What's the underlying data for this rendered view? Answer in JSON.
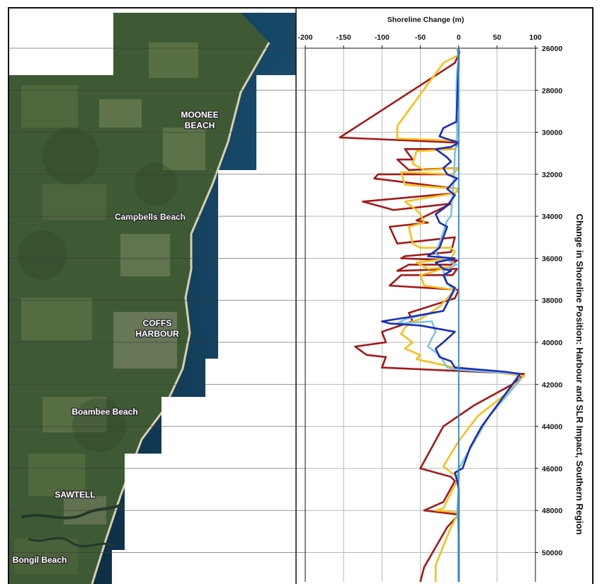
{
  "places": [
    {
      "id": "moonee",
      "lines": [
        "MOONEE",
        "BEACH"
      ]
    },
    {
      "id": "campbells",
      "lines": [
        "Campbells Beach"
      ]
    },
    {
      "id": "coffs",
      "lines": [
        "COFFS",
        "HARBOUR"
      ]
    },
    {
      "id": "boambee",
      "lines": [
        "Boambee Beach"
      ]
    },
    {
      "id": "sawtell",
      "lines": [
        "SAWTELL"
      ]
    },
    {
      "id": "bongil",
      "lines": [
        "Bongil Beach"
      ]
    }
  ],
  "chart_data": {
    "type": "line",
    "title": "Shoreline Change (m)",
    "ylabel": "Change in Shoreline Position: Harbour and SLR Impact, Southern Region",
    "xlim": [
      -200,
      100
    ],
    "ylim": [
      26000,
      51400
    ],
    "x_ticks": [
      -200,
      -150,
      -100,
      -50,
      0,
      50,
      100
    ],
    "y_ticks": [
      26000,
      28000,
      30000,
      32000,
      34000,
      36000,
      38000,
      40000,
      42000,
      44000,
      46000,
      48000,
      50000
    ],
    "grid": true,
    "legend": "none",
    "series": [
      {
        "color": "#a31a1a",
        "points": [
          [
            -2,
            26000
          ],
          [
            1,
            26200
          ],
          [
            -5,
            26700
          ],
          [
            -155,
            30250
          ],
          [
            0,
            30500
          ],
          [
            -5,
            30800
          ],
          [
            -70,
            30800
          ],
          [
            -60,
            31300
          ],
          [
            -80,
            31300
          ],
          [
            -65,
            31800
          ],
          [
            0,
            31700
          ],
          [
            -8,
            32000
          ],
          [
            -105,
            32000
          ],
          [
            -110,
            32200
          ],
          [
            0,
            32700
          ],
          [
            -5,
            32900
          ],
          [
            -125,
            33300
          ],
          [
            -85,
            33700
          ],
          [
            -10,
            33400
          ],
          [
            -55,
            34200
          ],
          [
            -40,
            34300
          ],
          [
            -90,
            34500
          ],
          [
            -80,
            35300
          ],
          [
            -5,
            35000
          ],
          [
            -10,
            35700
          ],
          [
            -70,
            35900
          ],
          [
            -75,
            36000
          ],
          [
            -2,
            36100
          ],
          [
            -10,
            36300
          ],
          [
            -65,
            36300
          ],
          [
            -80,
            36600
          ],
          [
            -2,
            36500
          ],
          [
            -8,
            36800
          ],
          [
            -75,
            36800
          ],
          [
            -90,
            37300
          ],
          [
            0,
            37500
          ],
          [
            -5,
            37900
          ],
          [
            -65,
            38600
          ],
          [
            -60,
            39000
          ],
          [
            -100,
            39500
          ],
          [
            -95,
            40000
          ],
          [
            -135,
            40200
          ],
          [
            -120,
            40600
          ],
          [
            -95,
            40700
          ],
          [
            -100,
            41200
          ],
          [
            85,
            41500
          ],
          [
            70,
            42000
          ],
          [
            20,
            43000
          ],
          [
            -20,
            44000
          ],
          [
            -50,
            46000
          ],
          [
            -10,
            46400
          ],
          [
            -5,
            46600
          ],
          [
            -20,
            47600
          ],
          [
            -45,
            48000
          ],
          [
            0,
            48200
          ],
          [
            -15,
            48800
          ],
          [
            -45,
            50700
          ],
          [
            -50,
            51400
          ]
        ]
      },
      {
        "color": "#f5c11c",
        "points": [
          [
            -3,
            26000
          ],
          [
            1,
            26300
          ],
          [
            -20,
            26700
          ],
          [
            -80,
            29700
          ],
          [
            -80,
            30300
          ],
          [
            0,
            30400
          ],
          [
            -5,
            30800
          ],
          [
            -55,
            30900
          ],
          [
            -60,
            31500
          ],
          [
            -45,
            31800
          ],
          [
            0,
            31700
          ],
          [
            -8,
            32000
          ],
          [
            -75,
            31900
          ],
          [
            -70,
            32500
          ],
          [
            0,
            32700
          ],
          [
            -5,
            32900
          ],
          [
            -70,
            33300
          ],
          [
            -55,
            33700
          ],
          [
            -50,
            33900
          ],
          [
            -45,
            34300
          ],
          [
            -65,
            34500
          ],
          [
            -60,
            35300
          ],
          [
            -50,
            35500
          ],
          [
            -10,
            35500
          ],
          [
            -5,
            35700
          ],
          [
            -10,
            36000
          ],
          [
            -55,
            36200
          ],
          [
            -40,
            36500
          ],
          [
            -10,
            36400
          ],
          [
            -50,
            36800
          ],
          [
            -45,
            37300
          ],
          [
            -5,
            37500
          ],
          [
            -25,
            38300
          ],
          [
            -50,
            38900
          ],
          [
            -60,
            39000
          ],
          [
            -70,
            39300
          ],
          [
            -75,
            39600
          ],
          [
            -60,
            40000
          ],
          [
            -70,
            40300
          ],
          [
            -50,
            40600
          ],
          [
            -55,
            40800
          ],
          [
            -30,
            41000
          ],
          [
            -5,
            41200
          ],
          [
            85,
            41600
          ],
          [
            60,
            42500
          ],
          [
            25,
            43500
          ],
          [
            0,
            44700
          ],
          [
            -20,
            45900
          ],
          [
            -10,
            46200
          ],
          [
            0,
            46400
          ],
          [
            -5,
            46800
          ],
          [
            -20,
            47900
          ],
          [
            -30,
            48000
          ],
          [
            0,
            48100
          ],
          [
            -10,
            48800
          ],
          [
            -30,
            50600
          ],
          [
            -30,
            51400
          ]
        ]
      },
      {
        "color": "#7fc3e0",
        "points": [
          [
            -2,
            26000
          ],
          [
            0,
            26500
          ],
          [
            -2,
            27000
          ],
          [
            -3,
            28000
          ],
          [
            -2,
            30000
          ],
          [
            -3,
            30500
          ],
          [
            -5,
            31000
          ],
          [
            -6,
            32000
          ],
          [
            -8,
            33000
          ],
          [
            -10,
            34000
          ],
          [
            -15,
            34200
          ],
          [
            -30,
            35800
          ],
          [
            -20,
            36000
          ],
          [
            -3,
            36300
          ],
          [
            -20,
            36600
          ],
          [
            -15,
            37200
          ],
          [
            -5,
            37500
          ],
          [
            -20,
            38500
          ],
          [
            -70,
            38900
          ],
          [
            -80,
            39100
          ],
          [
            -35,
            39000
          ],
          [
            -30,
            39500
          ],
          [
            -35,
            39800
          ],
          [
            -40,
            40200
          ],
          [
            -25,
            40600
          ],
          [
            -15,
            41200
          ],
          [
            0,
            41300
          ],
          [
            75,
            41500
          ],
          [
            80,
            41800
          ],
          [
            40,
            43500
          ],
          [
            0,
            46000
          ],
          [
            -2,
            46500
          ],
          [
            0,
            47000
          ],
          [
            -2,
            48000
          ],
          [
            0,
            49000
          ],
          [
            0,
            51400
          ]
        ]
      },
      {
        "color": "#1a2fb5",
        "points": [
          [
            0,
            26000
          ],
          [
            0,
            26800
          ],
          [
            -1,
            27500
          ],
          [
            -2,
            28500
          ],
          [
            -3,
            29500
          ],
          [
            -20,
            29800
          ],
          [
            -25,
            30200
          ],
          [
            0,
            30500
          ],
          [
            -10,
            30700
          ],
          [
            -30,
            30800
          ],
          [
            -15,
            31200
          ],
          [
            -10,
            31400
          ],
          [
            -20,
            31700
          ],
          [
            -15,
            32000
          ],
          [
            -2,
            32200
          ],
          [
            -10,
            32500
          ],
          [
            -15,
            32700
          ],
          [
            -5,
            33000
          ],
          [
            -15,
            33500
          ],
          [
            -30,
            33900
          ],
          [
            -25,
            34300
          ],
          [
            -15,
            34500
          ],
          [
            -20,
            35000
          ],
          [
            -25,
            35500
          ],
          [
            -40,
            35900
          ],
          [
            -5,
            36000
          ],
          [
            -30,
            36200
          ],
          [
            -20,
            36500
          ],
          [
            -10,
            36600
          ],
          [
            -20,
            36800
          ],
          [
            -15,
            37200
          ],
          [
            -5,
            37400
          ],
          [
            -20,
            38500
          ],
          [
            -65,
            38800
          ],
          [
            -100,
            39000
          ],
          [
            -90,
            39100
          ],
          [
            -50,
            39200
          ],
          [
            -5,
            39500
          ],
          [
            -20,
            40000
          ],
          [
            -30,
            40300
          ],
          [
            -25,
            40700
          ],
          [
            -10,
            40900
          ],
          [
            -5,
            41200
          ],
          [
            60,
            41400
          ],
          [
            80,
            41500
          ],
          [
            60,
            42500
          ],
          [
            30,
            44000
          ],
          [
            15,
            45000
          ],
          [
            5,
            46000
          ],
          [
            -5,
            46200
          ],
          [
            -2,
            46600
          ],
          [
            0,
            47000
          ],
          [
            0,
            51400
          ]
        ]
      },
      {
        "color": "#2f8fd0",
        "points": [
          [
            0,
            26000
          ],
          [
            0,
            51400
          ]
        ]
      }
    ]
  }
}
